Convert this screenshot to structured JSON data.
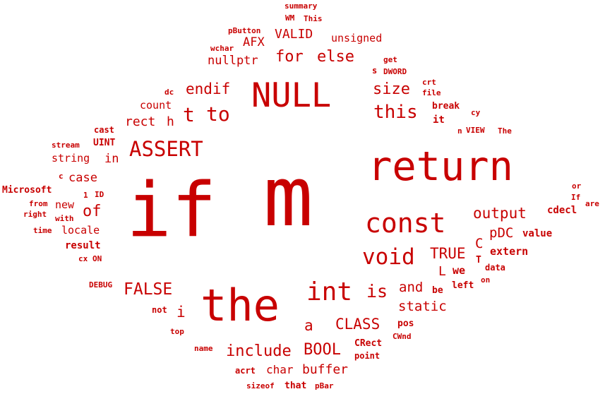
{
  "cloud": {
    "text_color": "#c80000",
    "words": [
      "summary",
      "WM",
      "This",
      "pButton",
      "VALID",
      "unsigned",
      "wchar",
      "AFX",
      "for",
      "else",
      "nullptr",
      "get",
      "s",
      "DWORD",
      "dc",
      "endif",
      "NULL",
      "size",
      "crt",
      "file",
      "count",
      "t",
      "to",
      "this",
      "break",
      "cy",
      "rect",
      "h",
      "it",
      "n",
      "VIEW",
      "The",
      "cast",
      "stream",
      "UINT",
      "ASSERT",
      "string",
      "in",
      "return",
      "c",
      "case",
      "Microsoft",
      "1",
      "ID",
      "or",
      "If",
      "are",
      "if",
      "m",
      "from",
      "new",
      "right",
      "with",
      "of",
      "const",
      "output",
      "cdecl",
      "time",
      "locale",
      "pDC",
      "value",
      "result",
      "C",
      "cx",
      "ON",
      "void",
      "TRUE",
      "extern",
      "T",
      "data",
      "L",
      "we",
      "on",
      "DEBUG",
      "FALSE",
      "left",
      "int",
      "is",
      "and",
      "be",
      "not",
      "i",
      "the",
      "static",
      "a",
      "CLASS",
      "pos",
      "top",
      "CWnd",
      "name",
      "include",
      "BOOL",
      "CRect",
      "point",
      "acrt",
      "char",
      "buffer",
      "sizeof",
      "that",
      "pBar"
    ]
  }
}
